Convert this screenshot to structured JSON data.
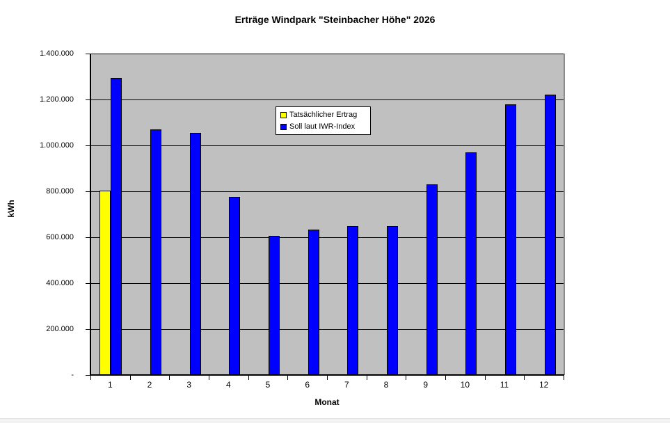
{
  "page": {
    "background": "#ffffff",
    "bottom_strip_color": "#f2f2f2"
  },
  "chart_data": {
    "type": "bar",
    "title": "Erträge Windpark \"Steinbacher Höhe\" 2026",
    "xlabel": "Monat",
    "ylabel": "kWh",
    "categories": [
      "1",
      "2",
      "3",
      "4",
      "5",
      "6",
      "7",
      "8",
      "9",
      "10",
      "11",
      "12"
    ],
    "series": [
      {
        "name": "Tatsächlicher Ertrag",
        "color": "#ffff00",
        "values": [
          803000,
          0,
          0,
          0,
          0,
          0,
          0,
          0,
          0,
          0,
          0,
          0
        ]
      },
      {
        "name": "Soll laut IWR-Index",
        "color": "#0000ff",
        "values": [
          1295000,
          1070000,
          1055000,
          775000,
          605000,
          632000,
          648000,
          648000,
          830000,
          970000,
          1180000,
          1222000
        ]
      }
    ],
    "ylim": [
      0,
      1400000
    ],
    "ytick_step": 200000,
    "ytick_zero_label": "-",
    "ytick_labels": [
      "-",
      "200.000",
      "400.000",
      "600.000",
      "800.000",
      "1.000.000",
      "1.200.000",
      "1.400.000"
    ],
    "grid": "horizontal",
    "gridline_color": "#000000",
    "plot_background": "#c0c0c0",
    "bar_border_color": "#000000",
    "legend_position": "upper-middle",
    "number_format": "de-thousands-dot"
  }
}
